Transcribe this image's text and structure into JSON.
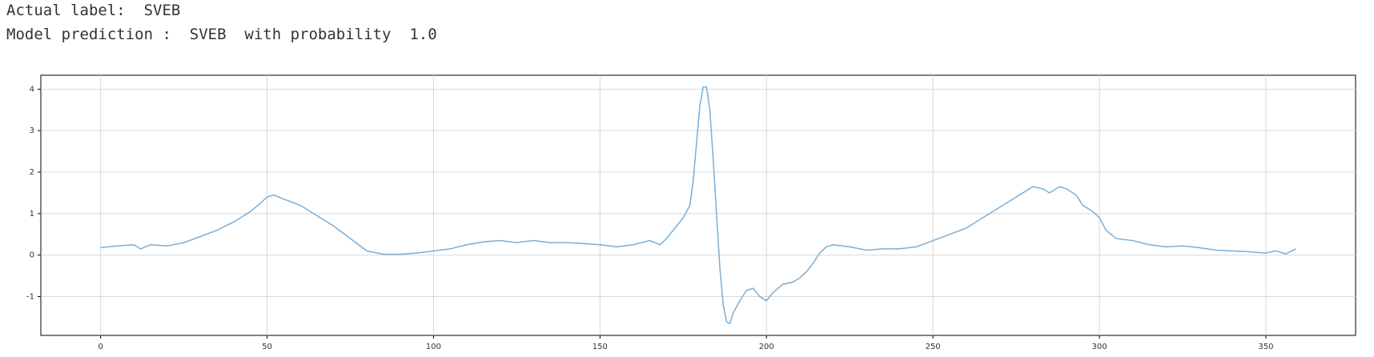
{
  "header": {
    "actual_label_line": "Actual label:  SVEB",
    "prediction_line": "Model prediction :  SVEB  with probability  1.0"
  },
  "chart_data": {
    "type": "line",
    "x": [
      0,
      5,
      10,
      12,
      15,
      20,
      25,
      30,
      35,
      40,
      45,
      48,
      50,
      52,
      55,
      60,
      65,
      70,
      75,
      80,
      85,
      90,
      95,
      100,
      105,
      110,
      115,
      120,
      125,
      130,
      135,
      140,
      145,
      150,
      155,
      160,
      165,
      168,
      170,
      172,
      175,
      177,
      178,
      179,
      180,
      181,
      182,
      183,
      184,
      185,
      186,
      187,
      188,
      189,
      190,
      192,
      194,
      196,
      198,
      200,
      202,
      205,
      208,
      210,
      212,
      214,
      216,
      218,
      220,
      225,
      230,
      235,
      240,
      245,
      250,
      255,
      260,
      265,
      270,
      275,
      280,
      283,
      285,
      288,
      290,
      293,
      295,
      298,
      300,
      302,
      305,
      310,
      315,
      320,
      325,
      330,
      335,
      340,
      345,
      350,
      353,
      356,
      359
    ],
    "series": [
      {
        "color": "#7aaed6",
        "values": [
          0.18,
          0.22,
          0.25,
          0.15,
          0.25,
          0.22,
          0.3,
          0.45,
          0.6,
          0.8,
          1.05,
          1.25,
          1.4,
          1.45,
          1.35,
          1.2,
          0.95,
          0.7,
          0.4,
          0.1,
          0.02,
          0.02,
          0.05,
          0.1,
          0.15,
          0.25,
          0.32,
          0.35,
          0.3,
          0.35,
          0.3,
          0.3,
          0.28,
          0.25,
          0.2,
          0.25,
          0.35,
          0.25,
          0.4,
          0.6,
          0.9,
          1.2,
          1.8,
          2.7,
          3.6,
          4.05,
          4.05,
          3.5,
          2.3,
          1.0,
          -0.3,
          -1.2,
          -1.6,
          -1.65,
          -1.4,
          -1.1,
          -0.85,
          -0.8,
          -1.0,
          -1.1,
          -0.9,
          -0.7,
          -0.65,
          -0.55,
          -0.4,
          -0.2,
          0.05,
          0.2,
          0.25,
          0.2,
          0.12,
          0.15,
          0.15,
          0.2,
          0.35,
          0.5,
          0.65,
          0.9,
          1.15,
          1.4,
          1.65,
          1.6,
          1.5,
          1.65,
          1.6,
          1.45,
          1.2,
          1.05,
          0.9,
          0.6,
          0.4,
          0.35,
          0.25,
          0.2,
          0.22,
          0.18,
          0.12,
          0.1,
          0.08,
          0.05,
          0.1,
          0.03,
          0.15
        ]
      }
    ],
    "xlim": [
      -17.95,
      376.95
    ],
    "ylim": [
      -1.935,
      4.335
    ],
    "xticks": [
      0,
      50,
      100,
      150,
      200,
      250,
      300,
      350
    ],
    "yticks": [
      -1,
      0,
      1,
      2,
      3,
      4
    ],
    "grid": true
  }
}
